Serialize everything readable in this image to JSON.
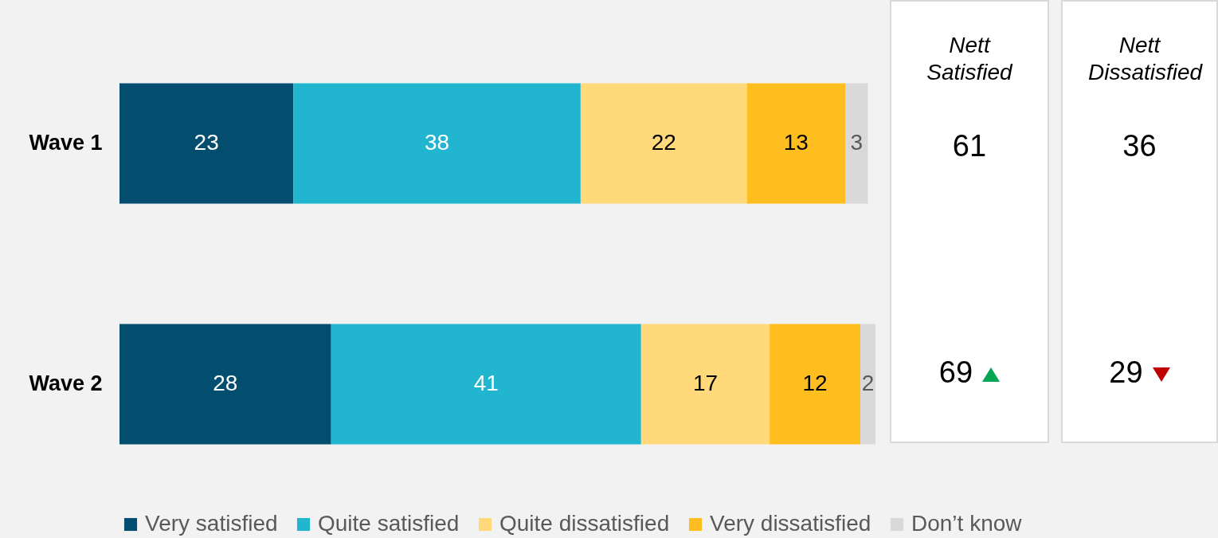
{
  "chart_data": [
    {
      "type": "bar",
      "orientation": "horizontal",
      "stacked": true,
      "data_labels": true,
      "legend": "bottom",
      "categories": [
        "Wave 1",
        "Wave 2"
      ],
      "series": [
        {
          "name": "Very satisfied",
          "color": "#034d6e",
          "values": [
            23,
            28
          ]
        },
        {
          "name": "Quite satisfied",
          "color": "#21b5cf",
          "values": [
            38,
            41
          ]
        },
        {
          "name": "Quite dissatisfied",
          "color": "#ffd97a",
          "values": [
            22,
            17
          ]
        },
        {
          "name": "Very dissatisfied",
          "color": "#ffbe1f",
          "values": [
            13,
            12
          ]
        },
        {
          "name": "Don’t know",
          "color": "#d9d9d9",
          "values": [
            3,
            2
          ]
        }
      ]
    },
    {
      "type": "other",
      "title": "Nett Satisfied",
      "annotations": [
        "61",
        "69"
      ]
    },
    {
      "type": "other",
      "title": "Nett Dissatisfied",
      "annotations": [
        "36",
        "29"
      ]
    }
  ]
}
